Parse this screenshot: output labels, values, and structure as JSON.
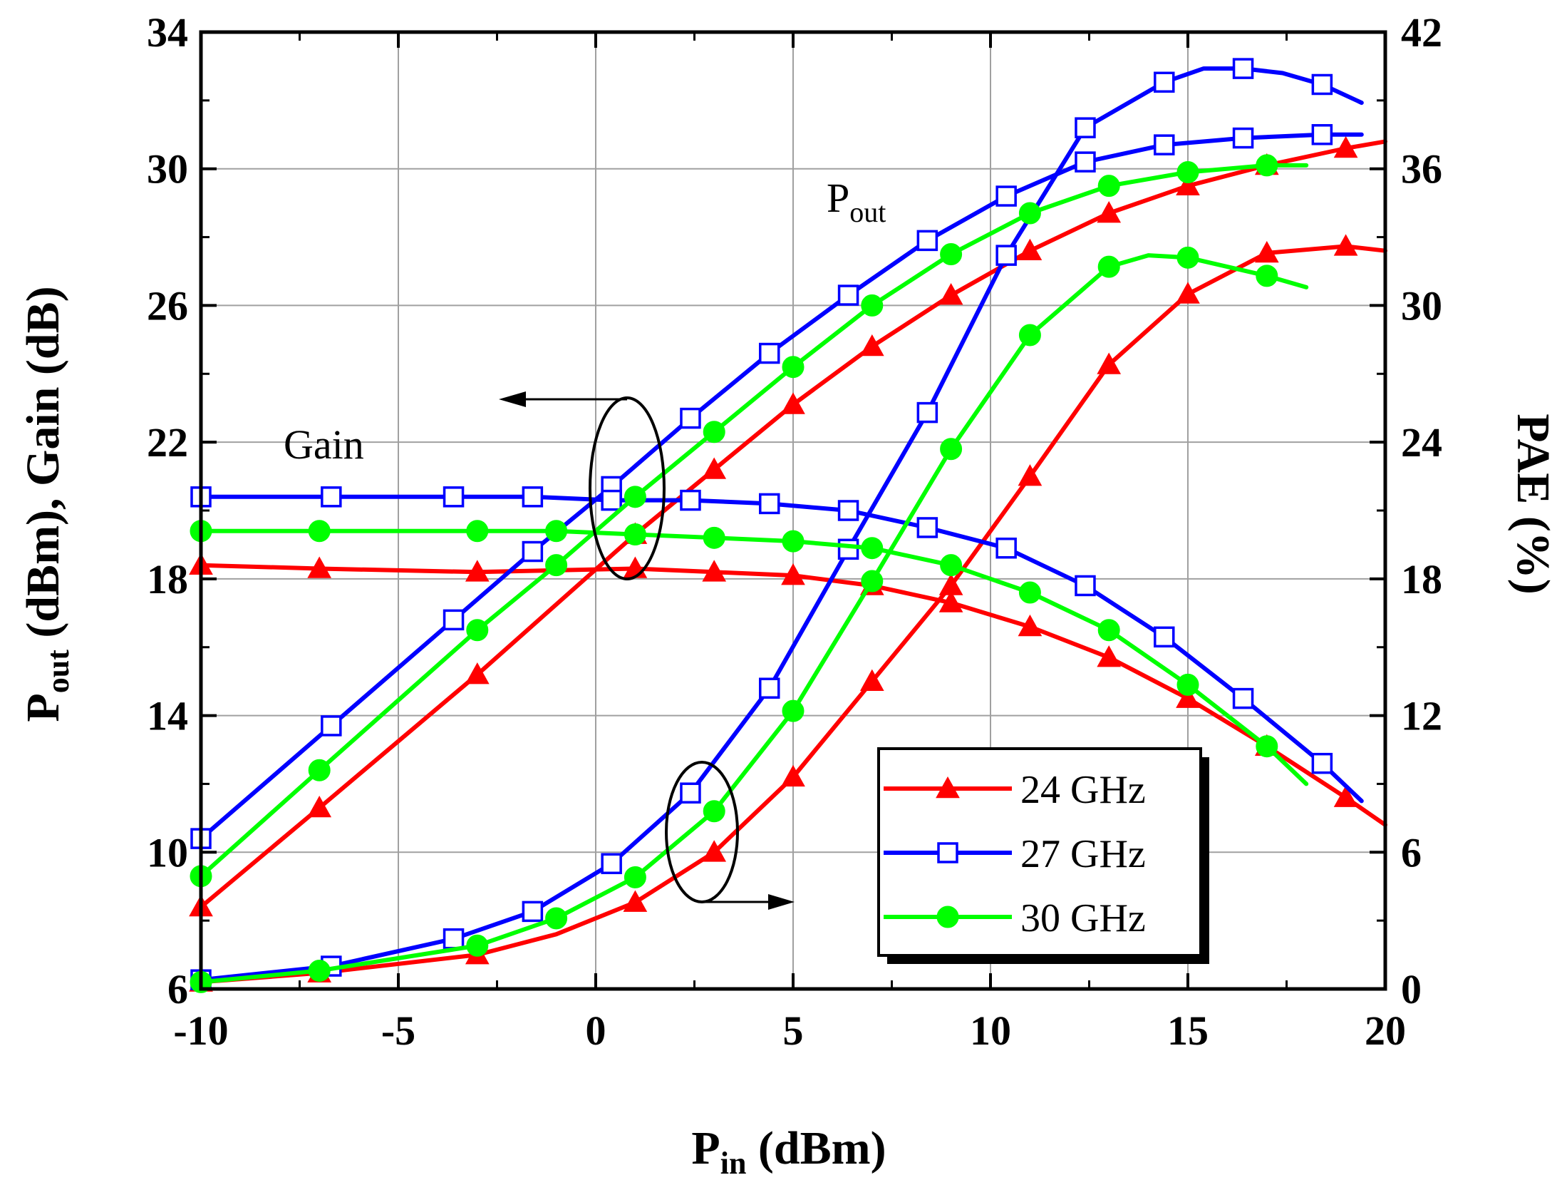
{
  "chart_data": {
    "type": "line",
    "x_axis": {
      "label_main": "P",
      "label_sub": "in",
      "label_unit": " (dBm)",
      "range": [
        -10,
        20
      ],
      "ticks": [
        "-10",
        "-5",
        "0",
        "5",
        "10",
        "15",
        "20"
      ]
    },
    "y_left": {
      "label_main": "P",
      "label_sub": "out",
      "label_rest": " (dBm), Gain (dB)",
      "range": [
        6,
        34
      ],
      "ticks": [
        "6",
        "10",
        "14",
        "18",
        "22",
        "26",
        "30",
        "34"
      ]
    },
    "y_right": {
      "label": "PAE (%)",
      "range": [
        0,
        42
      ],
      "ticks": [
        "0",
        "6",
        "12",
        "18",
        "24",
        "30",
        "36",
        "42"
      ]
    },
    "grid": true,
    "annotations": {
      "pout_main": "P",
      "pout_sub": "out",
      "gain": "Gain"
    },
    "legend": {
      "position": "bottom-right",
      "entries": [
        {
          "label": "24 GHz",
          "color": "#ff0000",
          "marker": "triangle-filled"
        },
        {
          "label": "27 GHz",
          "color": "#0000ff",
          "marker": "square-open"
        },
        {
          "label": "30 GHz",
          "color": "#00ff00",
          "marker": "circle-filled"
        }
      ]
    },
    "series": [
      {
        "name": "24 GHz Pout",
        "freq": "24 GHz",
        "axis": "left",
        "color": "#ff0000",
        "marker": "triangle",
        "x": [
          -10,
          -7,
          -3,
          1,
          3,
          5,
          7,
          9,
          11,
          13,
          15,
          17,
          19,
          20
        ],
        "y": [
          8.4,
          11.3,
          15.2,
          19.3,
          21.2,
          23.1,
          24.8,
          26.3,
          27.6,
          28.7,
          29.5,
          30.1,
          30.6,
          30.8
        ],
        "marker_x": [
          -10,
          -7,
          -3,
          1,
          3,
          5,
          7,
          9,
          11,
          13,
          15,
          17,
          19
        ]
      },
      {
        "name": "24 GHz Gain",
        "freq": "24 GHz",
        "axis": "left",
        "color": "#ff0000",
        "marker": "triangle",
        "x": [
          -10,
          -7,
          -3,
          1,
          3,
          5,
          7,
          9,
          11,
          13,
          15,
          17,
          19,
          20
        ],
        "y": [
          18.4,
          18.3,
          18.2,
          18.3,
          18.2,
          18.1,
          17.8,
          17.3,
          16.6,
          15.7,
          14.5,
          13.1,
          11.6,
          10.8
        ],
        "marker_x": [
          -10,
          -7,
          -3,
          1,
          3,
          5,
          7,
          9,
          11,
          13,
          15,
          17,
          19
        ]
      },
      {
        "name": "24 GHz PAE",
        "freq": "24 GHz",
        "axis": "right",
        "color": "#ff0000",
        "marker": "triangle",
        "x": [
          -10,
          -7,
          -3,
          -1,
          1,
          3,
          5,
          7,
          9,
          11,
          13,
          15,
          17,
          19,
          20
        ],
        "y": [
          0.3,
          0.7,
          1.5,
          2.4,
          3.8,
          6.0,
          9.3,
          13.5,
          17.7,
          22.5,
          27.4,
          30.5,
          32.3,
          32.6,
          32.4
        ],
        "marker_x": [
          -10,
          -7,
          -3,
          1,
          3,
          5,
          7,
          9,
          11,
          13,
          15,
          17,
          19
        ]
      },
      {
        "name": "27 GHz Pout",
        "freq": "27 GHz",
        "axis": "left",
        "color": "#0000ff",
        "marker": "square",
        "x": [
          -10,
          -6.7,
          -3.6,
          -1.6,
          0.4,
          2.4,
          4.4,
          6.4,
          8.4,
          10.4,
          12.4,
          14.4,
          16.4,
          18.4,
          19.4
        ],
        "y": [
          10.4,
          13.7,
          16.8,
          18.8,
          20.7,
          22.7,
          24.6,
          26.3,
          27.9,
          29.2,
          30.2,
          30.7,
          30.9,
          31.0,
          31.0
        ],
        "marker_x": [
          -10,
          -6.7,
          -3.6,
          -1.6,
          0.4,
          2.4,
          4.4,
          6.4,
          8.4,
          10.4,
          12.4,
          14.4,
          16.4,
          18.4
        ]
      },
      {
        "name": "27 GHz Gain",
        "freq": "27 GHz",
        "axis": "left",
        "color": "#0000ff",
        "marker": "square",
        "x": [
          -10,
          -6.7,
          -3.6,
          -1.6,
          0.4,
          2.4,
          4.4,
          6.4,
          8.4,
          10.4,
          12.4,
          14.4,
          16.4,
          18.4,
          19.4
        ],
        "y": [
          20.4,
          20.4,
          20.4,
          20.4,
          20.3,
          20.3,
          20.2,
          20.0,
          19.5,
          18.9,
          17.8,
          16.3,
          14.5,
          12.6,
          11.5
        ],
        "marker_x": [
          -10,
          -6.7,
          -3.6,
          -1.6,
          0.4,
          2.4,
          4.4,
          6.4,
          8.4,
          10.4,
          12.4,
          14.4,
          16.4,
          18.4
        ]
      },
      {
        "name": "27 GHz PAE",
        "freq": "27 GHz",
        "axis": "right",
        "color": "#0000ff",
        "marker": "square",
        "x": [
          -10,
          -6.7,
          -3.6,
          -1.6,
          0.4,
          2.4,
          4.4,
          6.4,
          8.4,
          10.4,
          12.4,
          14.4,
          15.4,
          16.4,
          17.4,
          18.4,
          19.4
        ],
        "y": [
          0.4,
          1.0,
          2.2,
          3.4,
          5.5,
          8.6,
          13.2,
          19.3,
          25.3,
          32.2,
          37.8,
          39.8,
          40.4,
          40.4,
          40.2,
          39.7,
          38.9
        ],
        "marker_x": [
          -10,
          -6.7,
          -3.6,
          -1.6,
          0.4,
          2.4,
          4.4,
          6.4,
          8.4,
          10.4,
          12.4,
          14.4,
          16.4,
          18.4
        ]
      },
      {
        "name": "30 GHz Pout",
        "freq": "30 GHz",
        "axis": "left",
        "color": "#00ff00",
        "marker": "circle",
        "x": [
          -10,
          -7,
          -3,
          -1,
          1,
          3,
          5,
          7,
          9,
          11,
          13,
          15,
          17,
          18
        ],
        "y": [
          9.3,
          12.4,
          16.5,
          18.4,
          20.4,
          22.3,
          24.2,
          26.0,
          27.5,
          28.7,
          29.5,
          29.9,
          30.1,
          30.1
        ],
        "marker_x": [
          -10,
          -7,
          -3,
          -1,
          1,
          3,
          5,
          7,
          9,
          11,
          13,
          15,
          17
        ]
      },
      {
        "name": "30 GHz Gain",
        "freq": "30 GHz",
        "axis": "left",
        "color": "#00ff00",
        "marker": "circle",
        "x": [
          -10,
          -7,
          -3,
          -1,
          1,
          3,
          5,
          7,
          9,
          11,
          13,
          15,
          17,
          18
        ],
        "y": [
          19.4,
          19.4,
          19.4,
          19.4,
          19.3,
          19.2,
          19.1,
          18.9,
          18.4,
          17.6,
          16.5,
          14.9,
          13.1,
          12.0
        ],
        "marker_x": [
          -10,
          -7,
          -3,
          -1,
          1,
          3,
          5,
          7,
          9,
          11,
          13,
          15,
          17
        ]
      },
      {
        "name": "30 GHz PAE",
        "freq": "30 GHz",
        "axis": "right",
        "color": "#00ff00",
        "marker": "circle",
        "x": [
          -10,
          -7,
          -3,
          -1,
          1,
          3,
          5,
          7,
          9,
          11,
          13,
          14,
          15,
          17,
          18
        ],
        "y": [
          0.3,
          0.8,
          1.9,
          3.1,
          4.9,
          7.8,
          12.2,
          17.9,
          23.7,
          28.7,
          31.7,
          32.2,
          32.1,
          31.3,
          30.8
        ],
        "marker_x": [
          -10,
          -7,
          -3,
          -1,
          1,
          3,
          5,
          7,
          9,
          11,
          13,
          15,
          17
        ]
      }
    ]
  }
}
